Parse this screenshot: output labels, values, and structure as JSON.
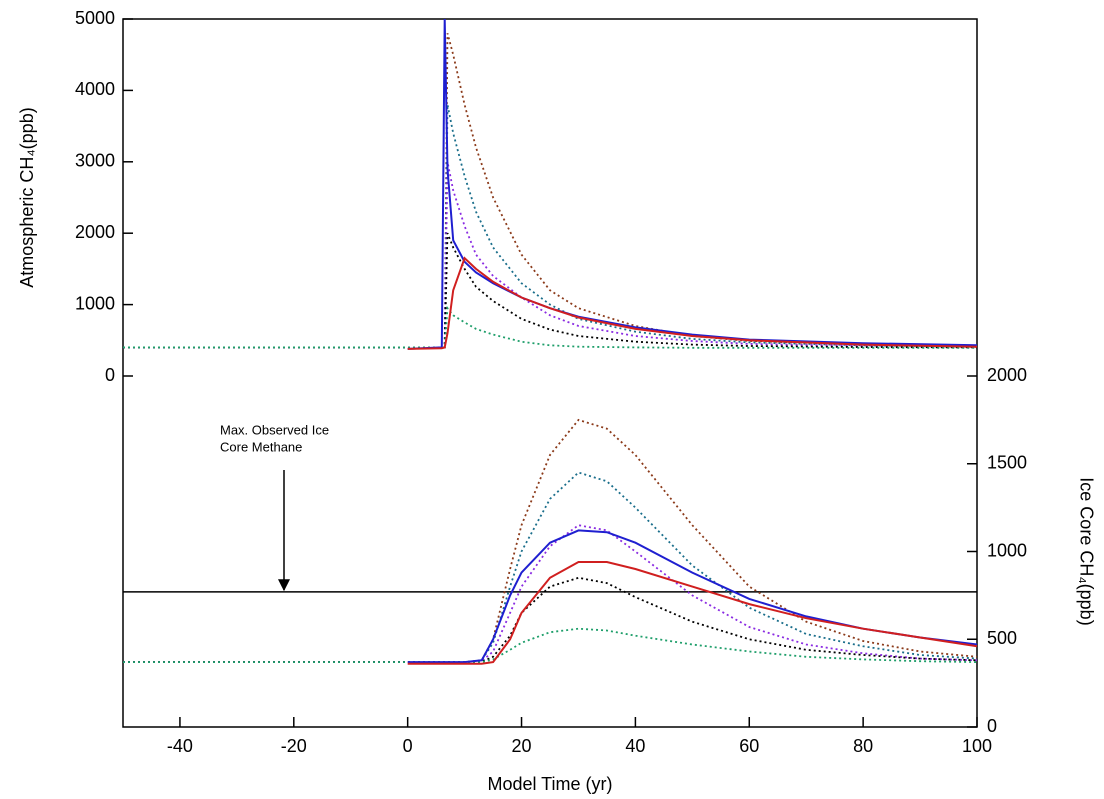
{
  "chart_data": [
    {
      "type": "line",
      "ylabel": "Atmospheric CH₄(ppb)",
      "yaxis_position": "left",
      "xlim": [
        -50,
        100
      ],
      "ylim": [
        0,
        5000
      ],
      "yticks": [
        0,
        1000,
        2000,
        3000,
        4000,
        5000
      ],
      "x": [
        -50,
        0,
        6,
        6.5,
        7,
        8,
        10,
        12,
        15,
        20,
        25,
        30,
        40,
        50,
        60,
        80,
        100
      ],
      "series": [
        {
          "color": "#8b3a1a",
          "dash": "dotted",
          "values": [
            400,
            400,
            400,
            400,
            4800,
            4500,
            3800,
            3200,
            2500,
            1700,
            1200,
            950,
            700,
            560,
            490,
            440,
            420
          ]
        },
        {
          "color": "#1a6e8b",
          "dash": "dotted",
          "values": [
            400,
            400,
            400,
            400,
            3800,
            3400,
            2800,
            2300,
            1800,
            1300,
            1000,
            800,
            620,
            520,
            470,
            430,
            410
          ]
        },
        {
          "color": "#8a2be2",
          "dash": "dotted",
          "values": [
            400,
            400,
            400,
            400,
            3000,
            2600,
            2100,
            1700,
            1400,
            1100,
            850,
            700,
            560,
            490,
            450,
            420,
            405
          ]
        },
        {
          "color": "#000000",
          "dash": "dotted",
          "values": [
            400,
            400,
            400,
            400,
            2000,
            1800,
            1500,
            1250,
            1050,
            800,
            650,
            560,
            480,
            440,
            420,
            405,
            400
          ]
        },
        {
          "color": "#1e9e6a",
          "dash": "dotted",
          "values": [
            400,
            400,
            400,
            400,
            950,
            850,
            750,
            660,
            580,
            480,
            430,
            410,
            400,
            395,
            395,
            395,
            395
          ]
        },
        {
          "color": "#1f1fd0",
          "dash": "solid",
          "values": [
            null,
            380,
            400,
            5000,
            2900,
            1900,
            1600,
            1450,
            1300,
            1100,
            950,
            830,
            680,
            580,
            510,
            460,
            430
          ]
        },
        {
          "color": "#d01f1f",
          "dash": "solid",
          "values": [
            null,
            380,
            390,
            400,
            600,
            1200,
            1650,
            1500,
            1320,
            1100,
            950,
            820,
            660,
            560,
            500,
            440,
            410
          ]
        }
      ]
    },
    {
      "type": "line",
      "ylabel": "Ice Core CH₄(ppb)",
      "yaxis_position": "right",
      "xlabel": "Model Time (yr)",
      "xlim": [
        -50,
        100
      ],
      "xticks": [
        -40,
        -20,
        0,
        20,
        40,
        60,
        80,
        100
      ],
      "ylim": [
        0,
        2000
      ],
      "yticks": [
        0,
        500,
        1000,
        1500,
        2000
      ],
      "reference_line": 770,
      "annotation": [
        "Max. Observed Ice",
        "Core Methane"
      ],
      "x": [
        -50,
        0,
        10,
        13,
        15,
        18,
        20,
        25,
        30,
        35,
        40,
        50,
        60,
        70,
        80,
        90,
        100
      ],
      "series": [
        {
          "color": "#8b3a1a",
          "dash": "dotted",
          "values": [
            370,
            370,
            370,
            380,
            500,
            900,
            1150,
            1550,
            1750,
            1700,
            1550,
            1150,
            800,
            600,
            490,
            430,
            400
          ]
        },
        {
          "color": "#1a6e8b",
          "dash": "dotted",
          "values": [
            370,
            370,
            370,
            380,
            480,
            800,
            1000,
            1300,
            1450,
            1400,
            1250,
            920,
            680,
            530,
            460,
            410,
            390
          ]
        },
        {
          "color": "#8a2be2",
          "dash": "dotted",
          "values": [
            370,
            370,
            370,
            375,
            430,
            650,
            800,
            1030,
            1150,
            1120,
            1000,
            750,
            570,
            470,
            420,
            390,
            380
          ]
        },
        {
          "color": "#000000",
          "dash": "dotted",
          "values": [
            370,
            370,
            370,
            372,
            400,
            520,
            650,
            800,
            850,
            820,
            740,
            600,
            500,
            440,
            410,
            390,
            380
          ]
        },
        {
          "color": "#1e9e6a",
          "dash": "dotted",
          "values": [
            370,
            370,
            370,
            370,
            385,
            440,
            480,
            540,
            560,
            550,
            520,
            470,
            430,
            400,
            385,
            375,
            370
          ]
        },
        {
          "color": "#1f1fd0",
          "dash": "solid",
          "values": [
            null,
            370,
            370,
            380,
            500,
            750,
            880,
            1050,
            1120,
            1110,
            1050,
            880,
            730,
            630,
            560,
            510,
            470
          ]
        },
        {
          "color": "#d01f1f",
          "dash": "solid",
          "values": [
            null,
            360,
            360,
            360,
            370,
            500,
            650,
            850,
            940,
            940,
            900,
            800,
            700,
            620,
            560,
            510,
            460
          ]
        }
      ]
    }
  ]
}
